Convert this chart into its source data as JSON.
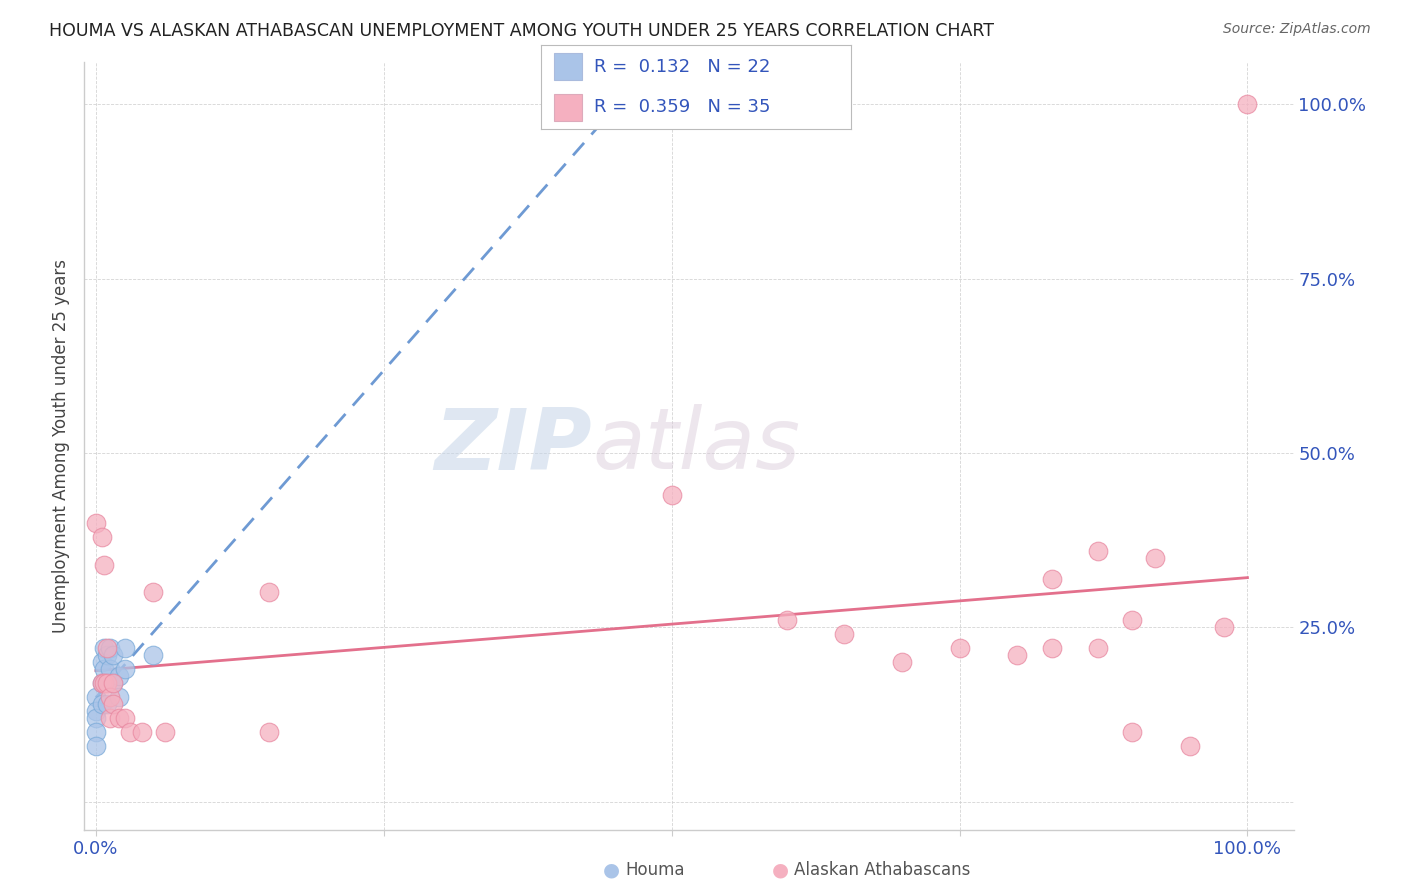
{
  "title": "HOUMA VS ALASKAN ATHABASCAN UNEMPLOYMENT AMONG YOUTH UNDER 25 YEARS CORRELATION CHART",
  "source": "Source: ZipAtlas.com",
  "ylabel": "Unemployment Among Youth under 25 years",
  "background_color": "#ffffff",
  "grid_color": "#d0d0d0",
  "watermark_zip": "ZIP",
  "watermark_atlas": "atlas",
  "houma_color": "#aac4e8",
  "houma_edge_color": "#7aaad8",
  "houma_line_color": "#5588cc",
  "athabascan_color": "#f5b0c0",
  "athabascan_edge_color": "#e888a0",
  "athabascan_line_color": "#e06080",
  "legend_R_houma": "0.132",
  "legend_N_houma": "22",
  "legend_R_athabascan": "0.359",
  "legend_N_athabascan": "35",
  "legend_text_color": "#3355bb",
  "houma_x": [
    0.0,
    0.0,
    0.0,
    0.0,
    0.0,
    0.005,
    0.005,
    0.005,
    0.007,
    0.007,
    0.01,
    0.01,
    0.01,
    0.012,
    0.012,
    0.015,
    0.015,
    0.02,
    0.02,
    0.025,
    0.025,
    0.05
  ],
  "houma_y": [
    0.15,
    0.13,
    0.12,
    0.1,
    0.08,
    0.2,
    0.17,
    0.14,
    0.22,
    0.19,
    0.21,
    0.17,
    0.14,
    0.22,
    0.19,
    0.21,
    0.17,
    0.18,
    0.15,
    0.22,
    0.19,
    0.21
  ],
  "athabascan_x": [
    0.0,
    0.005,
    0.005,
    0.007,
    0.007,
    0.01,
    0.01,
    0.012,
    0.012,
    0.015,
    0.015,
    0.02,
    0.025,
    0.03,
    0.04,
    0.05,
    0.06,
    0.15,
    0.15,
    0.5,
    0.6,
    0.65,
    0.7,
    0.75,
    0.8,
    0.83,
    0.83,
    0.87,
    0.87,
    0.9,
    0.9,
    0.92,
    0.95,
    0.98,
    1.0
  ],
  "athabascan_y": [
    0.4,
    0.38,
    0.17,
    0.34,
    0.17,
    0.22,
    0.17,
    0.15,
    0.12,
    0.17,
    0.14,
    0.12,
    0.12,
    0.1,
    0.1,
    0.3,
    0.1,
    0.3,
    0.1,
    0.44,
    0.26,
    0.24,
    0.2,
    0.22,
    0.21,
    0.32,
    0.22,
    0.22,
    0.36,
    0.1,
    0.26,
    0.35,
    0.08,
    0.25,
    1.0
  ],
  "yticks": [
    0.0,
    0.25,
    0.5,
    0.75,
    1.0
  ],
  "ytick_labels": [
    "",
    "25.0%",
    "50.0%",
    "75.0%",
    "100.0%"
  ],
  "xticks": [
    0.0,
    0.25,
    0.5,
    0.75,
    1.0
  ],
  "xtick_labels_shown": [
    "0.0%",
    "100.0%"
  ],
  "axis_color": "#3355bb",
  "ylabel_color": "#444444",
  "title_color": "#222222",
  "source_color": "#666666"
}
